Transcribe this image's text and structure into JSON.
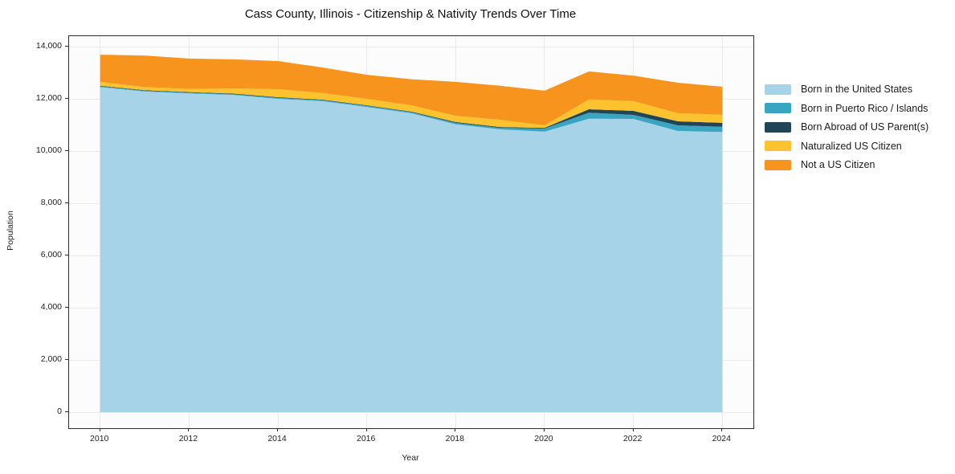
{
  "chart_data": {
    "type": "area",
    "title": "Cass County, Illinois - Citizenship & Nativity Trends Over Time",
    "xlabel": "Year",
    "ylabel": "Population",
    "x": [
      2010,
      2011,
      2012,
      2013,
      2014,
      2015,
      2016,
      2017,
      2018,
      2019,
      2020,
      2021,
      2022,
      2023,
      2024
    ],
    "series": [
      {
        "name": "Born in the United States",
        "color": "#a6d3e8",
        "values": [
          12450,
          12280,
          12210,
          12150,
          12000,
          11910,
          11690,
          11450,
          11020,
          10830,
          10740,
          11240,
          11230,
          10770,
          10730
        ]
      },
      {
        "name": "Born in Puerto Rico / Islands",
        "color": "#39a5c0",
        "values": [
          30,
          30,
          30,
          30,
          40,
          40,
          40,
          40,
          60,
          60,
          120,
          230,
          155,
          215,
          200
        ]
      },
      {
        "name": "Born Abroad of US Parent(s)",
        "color": "#1f4556",
        "values": [
          20,
          20,
          20,
          20,
          20,
          20,
          20,
          20,
          30,
          30,
          30,
          130,
          155,
          155,
          150
        ]
      },
      {
        "name": "Naturalized US Citizen",
        "color": "#fcc32e",
        "values": [
          150,
          120,
          120,
          200,
          310,
          250,
          250,
          240,
          240,
          280,
          95,
          380,
          370,
          310,
          310
        ]
      },
      {
        "name": "Not a US Citizen",
        "color": "#f7941e",
        "values": [
          1040,
          1210,
          1160,
          1110,
          1075,
          980,
          920,
          1000,
          1300,
          1300,
          1325,
          1070,
          980,
          1165,
          1075
        ]
      }
    ],
    "xlim": [
      2009.3,
      2024.7
    ],
    "ylim": [
      0,
      14000
    ],
    "xticks": [
      2010,
      2012,
      2014,
      2016,
      2018,
      2020,
      2022,
      2024
    ],
    "yticks": [
      0,
      2000,
      4000,
      6000,
      8000,
      10000,
      12000,
      14000
    ],
    "ytick_labels": [
      "0",
      "2,000",
      "4,000",
      "6,000",
      "8,000",
      "10,000",
      "12,000",
      "14,000"
    ],
    "grid": true,
    "legend_position": "center right, outside"
  }
}
